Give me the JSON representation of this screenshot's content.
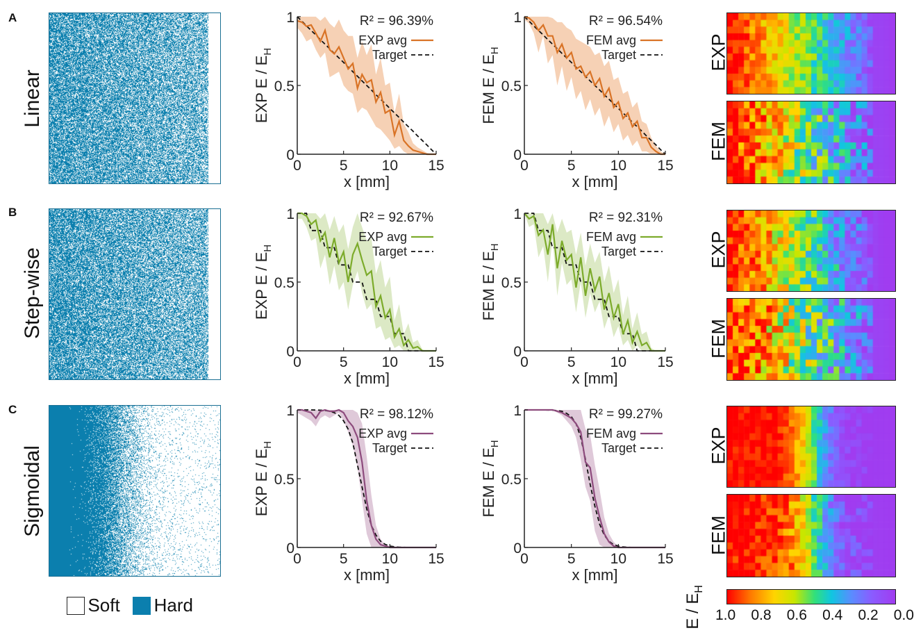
{
  "colors": {
    "hard": "#0b7fae",
    "exp_linear": "#d97326",
    "exp_linear_band": "#f4c9a8",
    "exp_step": "#7cab2b",
    "exp_step_band": "#d6e5bb",
    "exp_sig": "#8d4b7d",
    "exp_sig_band": "#d9bfd2"
  },
  "rows": [
    {
      "letter": "A",
      "label": "Linear",
      "r2_exp": "R² = 96.39%",
      "r2_fem": "R² = 96.54%"
    },
    {
      "letter": "B",
      "label": "Step-wise",
      "r2_exp": "R² = 92.67%",
      "r2_fem": "R² = 92.31%"
    },
    {
      "letter": "C",
      "label": "Sigmoidal",
      "r2_exp": "R² = 98.12%",
      "r2_fem": "R² = 99.27%"
    }
  ],
  "legend": {
    "soft": "Soft",
    "hard": "Hard",
    "exp_avg": "EXP avg",
    "fem_avg": "FEM avg",
    "target": "Target"
  },
  "axes": {
    "xlabel": "x [mm]",
    "ylabel_exp": "EXP E / E",
    "ylabel_fem": "FEM E / E",
    "ylabel_sub": "H"
  },
  "heatmap_labels": {
    "exp": "EXP",
    "fem": "FEM"
  },
  "colorbar": {
    "label": "E / E",
    "label_sub": "H",
    "ticks": [
      "1.0",
      "0.8",
      "0.6",
      "0.4",
      "0.2",
      "0.0"
    ]
  },
  "chart_data": [
    {
      "type": "line",
      "title": "",
      "row": "Linear",
      "source": "EXP",
      "xlabel": "x [mm]",
      "ylabel": "EXP E / E_H",
      "xlim": [
        0,
        15
      ],
      "ylim": [
        0,
        1
      ],
      "xticks": [
        0,
        5,
        10,
        15
      ],
      "yticks": [
        0,
        0.5,
        1
      ],
      "r2": "96.39%",
      "x": [
        0,
        0.5,
        1,
        1.5,
        2,
        2.5,
        3,
        3.5,
        4,
        4.5,
        5,
        5.5,
        6,
        6.5,
        7,
        7.5,
        8,
        8.5,
        9,
        9.5,
        10,
        10.5,
        11,
        11.5,
        12,
        12.5,
        13,
        13.5,
        14,
        14.5,
        15
      ],
      "series": [
        {
          "name": "EXP avg",
          "values": [
            0.97,
            0.96,
            0.93,
            0.94,
            0.88,
            0.82,
            0.9,
            0.76,
            0.73,
            0.78,
            0.7,
            0.62,
            0.66,
            0.48,
            0.58,
            0.52,
            0.54,
            0.38,
            0.45,
            0.3,
            0.32,
            0.14,
            0.24,
            0.1,
            0.06,
            0.03,
            0.02,
            0.01,
            0.0,
            0.0,
            0.0
          ]
        },
        {
          "name": "Target",
          "values": [
            1.0,
            0.967,
            0.933,
            0.9,
            0.867,
            0.833,
            0.8,
            0.767,
            0.733,
            0.7,
            0.667,
            0.633,
            0.6,
            0.567,
            0.533,
            0.5,
            0.467,
            0.433,
            0.4,
            0.367,
            0.333,
            0.3,
            0.267,
            0.233,
            0.2,
            0.167,
            0.133,
            0.1,
            0.067,
            0.033,
            0.0
          ]
        }
      ],
      "band_lower": [
        0.92,
        0.88,
        0.82,
        0.84,
        0.76,
        0.7,
        0.74,
        0.56,
        0.58,
        0.6,
        0.5,
        0.46,
        0.44,
        0.3,
        0.34,
        0.32,
        0.26,
        0.2,
        0.18,
        0.14,
        0.1,
        0.04,
        0.06,
        0.02,
        0.0,
        0.0,
        0.0,
        0.0,
        0.0,
        0.0,
        0.0
      ],
      "band_upper": [
        1.0,
        1.0,
        1.0,
        1.0,
        1.0,
        0.97,
        1.0,
        0.95,
        0.92,
        0.98,
        0.9,
        0.86,
        0.86,
        0.7,
        0.82,
        0.72,
        0.8,
        0.58,
        0.7,
        0.5,
        0.52,
        0.3,
        0.44,
        0.22,
        0.16,
        0.08,
        0.05,
        0.03,
        0.01,
        0.0,
        0.0
      ]
    },
    {
      "type": "line",
      "title": "",
      "row": "Linear",
      "source": "FEM",
      "xlabel": "x [mm]",
      "ylabel": "FEM E / E_H",
      "xlim": [
        0,
        15
      ],
      "ylim": [
        0,
        1
      ],
      "xticks": [
        0,
        5,
        10,
        15
      ],
      "yticks": [
        0,
        0.5,
        1
      ],
      "r2": "96.54%",
      "x": [
        0,
        0.5,
        1,
        1.5,
        2,
        2.5,
        3,
        3.5,
        4,
        4.5,
        5,
        5.5,
        6,
        6.5,
        7,
        7.5,
        8,
        8.5,
        9,
        9.5,
        10,
        10.5,
        11,
        11.5,
        12,
        12.5,
        13,
        13.5,
        14,
        14.5,
        15
      ],
      "series": [
        {
          "name": "FEM avg",
          "values": [
            1.0,
            0.99,
            0.96,
            0.9,
            0.94,
            0.86,
            0.86,
            0.74,
            0.8,
            0.7,
            0.74,
            0.62,
            0.64,
            0.56,
            0.6,
            0.5,
            0.55,
            0.42,
            0.48,
            0.34,
            0.38,
            0.26,
            0.3,
            0.2,
            0.24,
            0.12,
            0.12,
            0.05,
            0.02,
            0.0,
            0.0
          ]
        },
        {
          "name": "Target",
          "values": [
            1.0,
            0.967,
            0.933,
            0.9,
            0.867,
            0.833,
            0.8,
            0.767,
            0.733,
            0.7,
            0.667,
            0.633,
            0.6,
            0.567,
            0.533,
            0.5,
            0.467,
            0.433,
            0.4,
            0.367,
            0.333,
            0.3,
            0.267,
            0.233,
            0.2,
            0.167,
            0.133,
            0.1,
            0.067,
            0.033,
            0.0
          ]
        }
      ],
      "band_lower": [
        0.98,
        0.95,
        0.88,
        0.74,
        0.86,
        0.66,
        0.72,
        0.5,
        0.64,
        0.46,
        0.56,
        0.4,
        0.46,
        0.32,
        0.4,
        0.28,
        0.34,
        0.2,
        0.28,
        0.16,
        0.22,
        0.1,
        0.14,
        0.06,
        0.1,
        0.02,
        0.02,
        0.0,
        0.0,
        0.0,
        0.0
      ],
      "band_upper": [
        1.0,
        1.0,
        1.0,
        1.0,
        1.0,
        1.0,
        0.99,
        0.96,
        0.96,
        0.92,
        0.9,
        0.84,
        0.82,
        0.8,
        0.78,
        0.72,
        0.74,
        0.64,
        0.68,
        0.54,
        0.56,
        0.44,
        0.46,
        0.34,
        0.38,
        0.24,
        0.22,
        0.12,
        0.06,
        0.02,
        0.0
      ]
    },
    {
      "type": "line",
      "title": "",
      "row": "Step-wise",
      "source": "EXP",
      "xlabel": "x [mm]",
      "ylabel": "EXP E / E_H",
      "xlim": [
        0,
        15
      ],
      "ylim": [
        0,
        1
      ],
      "xticks": [
        0,
        5,
        10,
        15
      ],
      "yticks": [
        0,
        0.5,
        1
      ],
      "r2": "92.67%",
      "x": [
        0,
        0.5,
        1,
        1.5,
        2,
        2.5,
        3,
        3.5,
        4,
        4.5,
        5,
        5.5,
        6,
        6.5,
        7,
        7.5,
        8,
        8.5,
        9,
        9.5,
        10,
        10.5,
        11,
        11.5,
        12,
        12.5,
        13,
        13.5,
        14,
        14.5,
        15
      ],
      "series": [
        {
          "name": "EXP avg",
          "values": [
            1.0,
            1.0,
            0.98,
            0.92,
            0.95,
            0.8,
            0.86,
            0.68,
            0.82,
            0.64,
            0.72,
            0.5,
            0.7,
            0.78,
            0.66,
            0.55,
            0.58,
            0.32,
            0.4,
            0.24,
            0.3,
            0.1,
            0.16,
            0.04,
            0.08,
            0.02,
            0.03,
            0.0,
            0.0,
            0.0,
            0.0
          ]
        },
        {
          "name": "Target",
          "values": [
            1.0,
            1.0,
            1.0,
            0.875,
            0.875,
            0.875,
            0.75,
            0.75,
            0.75,
            0.625,
            0.625,
            0.625,
            0.5,
            0.5,
            0.5,
            0.375,
            0.375,
            0.375,
            0.25,
            0.25,
            0.25,
            0.125,
            0.125,
            0.125,
            0.0,
            0.0,
            0.0,
            0.0,
            0.0,
            0.0,
            0.0
          ]
        }
      ],
      "band_lower": [
        0.96,
        0.96,
        0.9,
        0.8,
        0.82,
        0.6,
        0.7,
        0.48,
        0.62,
        0.44,
        0.5,
        0.3,
        0.48,
        0.58,
        0.42,
        0.3,
        0.34,
        0.16,
        0.18,
        0.08,
        0.1,
        0.02,
        0.04,
        0.0,
        0.0,
        0.0,
        0.0,
        0.0,
        0.0,
        0.0,
        0.0
      ],
      "band_upper": [
        1.0,
        1.0,
        1.0,
        1.0,
        1.0,
        0.96,
        1.0,
        0.88,
        0.98,
        0.86,
        0.92,
        0.74,
        0.9,
        1.0,
        0.9,
        0.8,
        0.82,
        0.56,
        0.66,
        0.46,
        0.54,
        0.22,
        0.34,
        0.12,
        0.2,
        0.06,
        0.08,
        0.01,
        0.0,
        0.0,
        0.0
      ]
    },
    {
      "type": "line",
      "title": "",
      "row": "Step-wise",
      "source": "FEM",
      "xlabel": "x [mm]",
      "ylabel": "FEM E / E_H",
      "xlim": [
        0,
        15
      ],
      "ylim": [
        0,
        1
      ],
      "xticks": [
        0,
        5,
        10,
        15
      ],
      "yticks": [
        0,
        0.5,
        1
      ],
      "r2": "92.31%",
      "x": [
        0,
        0.5,
        1,
        1.5,
        2,
        2.5,
        3,
        3.5,
        4,
        4.5,
        5,
        5.5,
        6,
        6.5,
        7,
        7.5,
        8,
        8.5,
        9,
        9.5,
        10,
        10.5,
        11,
        11.5,
        12,
        12.5,
        13,
        13.5,
        14,
        14.5,
        15
      ],
      "series": [
        {
          "name": "FEM avg",
          "values": [
            1.0,
            0.96,
            0.98,
            0.84,
            0.88,
            0.7,
            0.92,
            0.6,
            0.8,
            0.66,
            0.7,
            0.46,
            0.68,
            0.4,
            0.6,
            0.44,
            0.54,
            0.3,
            0.42,
            0.24,
            0.34,
            0.12,
            0.22,
            0.06,
            0.14,
            0.04,
            0.06,
            0.0,
            0.0,
            0.0,
            0.0
          ]
        },
        {
          "name": "Target",
          "values": [
            1.0,
            1.0,
            1.0,
            0.875,
            0.875,
            0.875,
            0.75,
            0.75,
            0.75,
            0.625,
            0.625,
            0.625,
            0.5,
            0.5,
            0.5,
            0.375,
            0.375,
            0.375,
            0.25,
            0.25,
            0.25,
            0.125,
            0.125,
            0.125,
            0.0,
            0.0,
            0.0,
            0.0,
            0.0,
            0.0,
            0.0
          ]
        }
      ],
      "band_lower": [
        1.0,
        0.9,
        0.92,
        0.68,
        0.76,
        0.5,
        0.82,
        0.4,
        0.64,
        0.48,
        0.52,
        0.28,
        0.5,
        0.24,
        0.42,
        0.28,
        0.36,
        0.16,
        0.26,
        0.1,
        0.18,
        0.04,
        0.08,
        0.0,
        0.04,
        0.0,
        0.0,
        0.0,
        0.0,
        0.0,
        0.0
      ],
      "band_upper": [
        1.0,
        1.0,
        1.0,
        1.0,
        1.0,
        0.92,
        1.0,
        0.86,
        0.96,
        0.86,
        0.88,
        0.7,
        0.86,
        0.62,
        0.78,
        0.64,
        0.72,
        0.5,
        0.62,
        0.42,
        0.52,
        0.26,
        0.4,
        0.16,
        0.28,
        0.12,
        0.14,
        0.02,
        0.0,
        0.0,
        0.0
      ]
    },
    {
      "type": "line",
      "title": "",
      "row": "Sigmoidal",
      "source": "EXP",
      "xlabel": "x [mm]",
      "ylabel": "EXP E / E_H",
      "xlim": [
        0,
        15
      ],
      "ylim": [
        0,
        1
      ],
      "xticks": [
        0,
        5,
        10,
        15
      ],
      "yticks": [
        0,
        0.5,
        1
      ],
      "r2": "98.12%",
      "x": [
        0,
        0.5,
        1,
        1.5,
        2,
        2.5,
        3,
        3.5,
        4,
        4.5,
        5,
        5.5,
        6,
        6.5,
        7,
        7.5,
        8,
        8.5,
        9,
        9.5,
        10,
        10.5,
        11,
        11.5,
        12,
        12.5,
        13,
        13.5,
        14,
        14.5,
        15
      ],
      "series": [
        {
          "name": "EXP avg",
          "values": [
            1.0,
            1.0,
            0.99,
            0.98,
            0.94,
            0.99,
            1.0,
            0.99,
            0.99,
            1.0,
            0.98,
            0.92,
            0.88,
            0.8,
            0.62,
            0.34,
            0.16,
            0.06,
            0.02,
            0.01,
            0.0,
            0.0,
            0.0,
            0.0,
            0.0,
            0.0,
            0.0,
            0.0,
            0.0,
            0.0,
            0.0
          ]
        },
        {
          "name": "Target",
          "values": [
            1.0,
            1.0,
            1.0,
            1.0,
            0.999,
            0.998,
            0.996,
            0.99,
            0.98,
            0.96,
            0.92,
            0.86,
            0.76,
            0.6,
            0.44,
            0.28,
            0.16,
            0.09,
            0.045,
            0.022,
            0.01,
            0.005,
            0.002,
            0.001,
            0.0,
            0.0,
            0.0,
            0.0,
            0.0,
            0.0,
            0.0
          ]
        }
      ],
      "band_lower": [
        0.98,
        0.96,
        0.94,
        0.92,
        0.88,
        0.94,
        0.96,
        0.94,
        0.96,
        0.98,
        0.92,
        0.84,
        0.74,
        0.58,
        0.34,
        0.1,
        0.0,
        0.0,
        0.0,
        0.0,
        0.0,
        0.0,
        0.0,
        0.0,
        0.0,
        0.0,
        0.0,
        0.0,
        0.0,
        0.0,
        0.0
      ],
      "band_upper": [
        1.0,
        1.0,
        1.0,
        1.0,
        1.0,
        1.0,
        1.0,
        1.0,
        1.0,
        1.0,
        1.0,
        1.0,
        1.0,
        0.98,
        0.9,
        0.66,
        0.38,
        0.16,
        0.06,
        0.02,
        0.01,
        0.0,
        0.0,
        0.0,
        0.0,
        0.0,
        0.0,
        0.0,
        0.0,
        0.0,
        0.0
      ]
    },
    {
      "type": "line",
      "title": "",
      "row": "Sigmoidal",
      "source": "FEM",
      "xlabel": "x [mm]",
      "ylabel": "FEM E / E_H",
      "xlim": [
        0,
        15
      ],
      "ylim": [
        0,
        1
      ],
      "xticks": [
        0,
        5,
        10,
        15
      ],
      "yticks": [
        0,
        0.5,
        1
      ],
      "r2": "99.27%",
      "x": [
        0,
        0.5,
        1,
        1.5,
        2,
        2.5,
        3,
        3.5,
        4,
        4.5,
        5,
        5.5,
        6,
        6.5,
        7,
        7.5,
        8,
        8.5,
        9,
        9.5,
        10,
        10.5,
        11,
        11.5,
        12,
        12.5,
        13,
        13.5,
        14,
        14.5,
        15
      ],
      "series": [
        {
          "name": "FEM avg",
          "values": [
            1.0,
            1.0,
            1.0,
            1.0,
            1.0,
            1.0,
            1.0,
            0.99,
            0.98,
            0.96,
            0.94,
            0.9,
            0.84,
            0.62,
            0.58,
            0.36,
            0.22,
            0.1,
            0.04,
            0.01,
            0.0,
            0.0,
            0.0,
            0.0,
            0.0,
            0.0,
            0.0,
            0.0,
            0.0,
            0.0,
            0.0
          ]
        },
        {
          "name": "Target",
          "values": [
            1.0,
            1.0,
            1.0,
            1.0,
            1.0,
            0.999,
            0.998,
            0.995,
            0.99,
            0.975,
            0.95,
            0.9,
            0.8,
            0.64,
            0.46,
            0.3,
            0.17,
            0.09,
            0.045,
            0.02,
            0.01,
            0.004,
            0.002,
            0.0,
            0.0,
            0.0,
            0.0,
            0.0,
            0.0,
            0.0,
            0.0
          ]
        }
      ],
      "band_lower": [
        1.0,
        1.0,
        1.0,
        1.0,
        1.0,
        1.0,
        1.0,
        0.98,
        0.96,
        0.92,
        0.88,
        0.8,
        0.64,
        0.44,
        0.34,
        0.12,
        0.02,
        0.0,
        0.0,
        0.0,
        0.0,
        0.0,
        0.0,
        0.0,
        0.0,
        0.0,
        0.0,
        0.0,
        0.0,
        0.0,
        0.0
      ],
      "band_upper": [
        1.0,
        1.0,
        1.0,
        1.0,
        1.0,
        1.0,
        1.0,
        1.0,
        1.0,
        1.0,
        1.0,
        1.0,
        1.0,
        0.86,
        0.82,
        0.6,
        0.42,
        0.22,
        0.1,
        0.04,
        0.01,
        0.0,
        0.0,
        0.0,
        0.0,
        0.0,
        0.0,
        0.0,
        0.0,
        0.0,
        0.0
      ]
    }
  ]
}
